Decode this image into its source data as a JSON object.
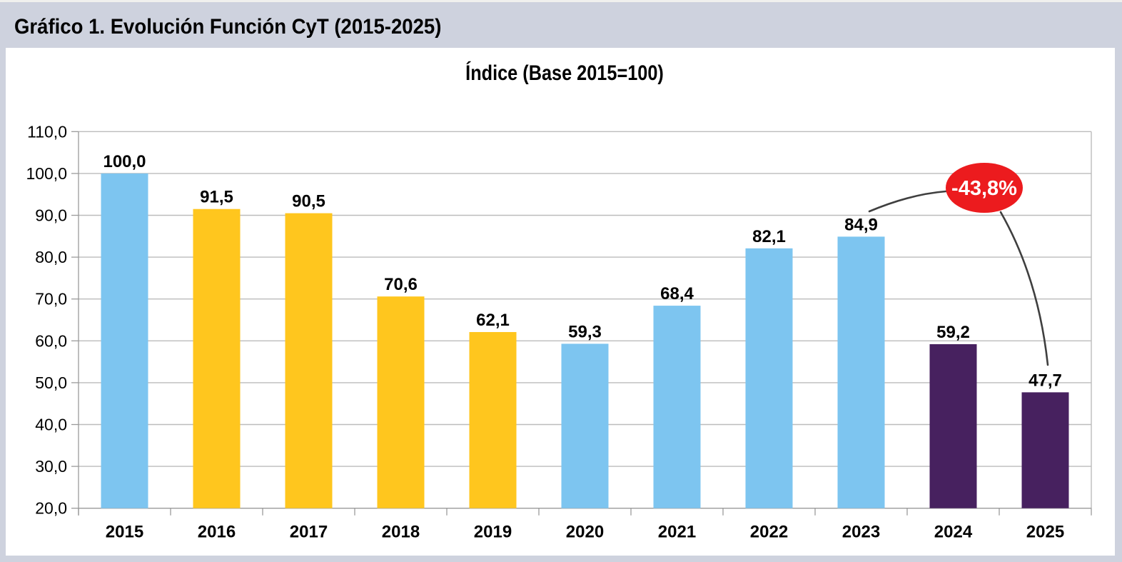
{
  "header": {
    "title": "Gráfico 1. Evolución Función CyT (2015-2025)"
  },
  "chart_data": {
    "type": "bar",
    "title": "Índice (Base 2015=100)",
    "categories": [
      "2015",
      "2016",
      "2017",
      "2018",
      "2019",
      "2020",
      "2021",
      "2022",
      "2023",
      "2024",
      "2025"
    ],
    "values": [
      100.0,
      91.5,
      90.5,
      70.6,
      62.1,
      59.3,
      68.4,
      82.1,
      84.9,
      59.2,
      47.7
    ],
    "value_labels": [
      "100,0",
      "91,5",
      "90,5",
      "70,6",
      "62,1",
      "59,3",
      "68,4",
      "82,1",
      "84,9",
      "59,2",
      "47,7"
    ],
    "bar_color_keys": [
      "blue",
      "yellow",
      "yellow",
      "yellow",
      "yellow",
      "blue",
      "blue",
      "blue",
      "blue",
      "purple",
      "purple"
    ],
    "colors": {
      "blue": "#7dc5f0",
      "yellow": "#ffc61e",
      "purple": "#47215f",
      "annotation_red": "#ec1b1e",
      "annotation_text": "#ffffff",
      "gridline": "#bcbcbc",
      "axis": "#9a9a9a",
      "connector": "#3f3f3f",
      "background": "#ced2de",
      "plot_background": "#ffffff"
    },
    "xlabel": "",
    "ylabel": "",
    "ylim": [
      20,
      110
    ],
    "ytick_step": 10,
    "ytick_labels": [
      "20,0",
      "30,0",
      "40,0",
      "50,0",
      "60,0",
      "70,0",
      "80,0",
      "90,0",
      "100,0",
      "110,0"
    ],
    "grid": true,
    "legend": "none",
    "annotation": {
      "label": "-43,8%",
      "from_category": "2023",
      "to_category": "2025"
    }
  }
}
